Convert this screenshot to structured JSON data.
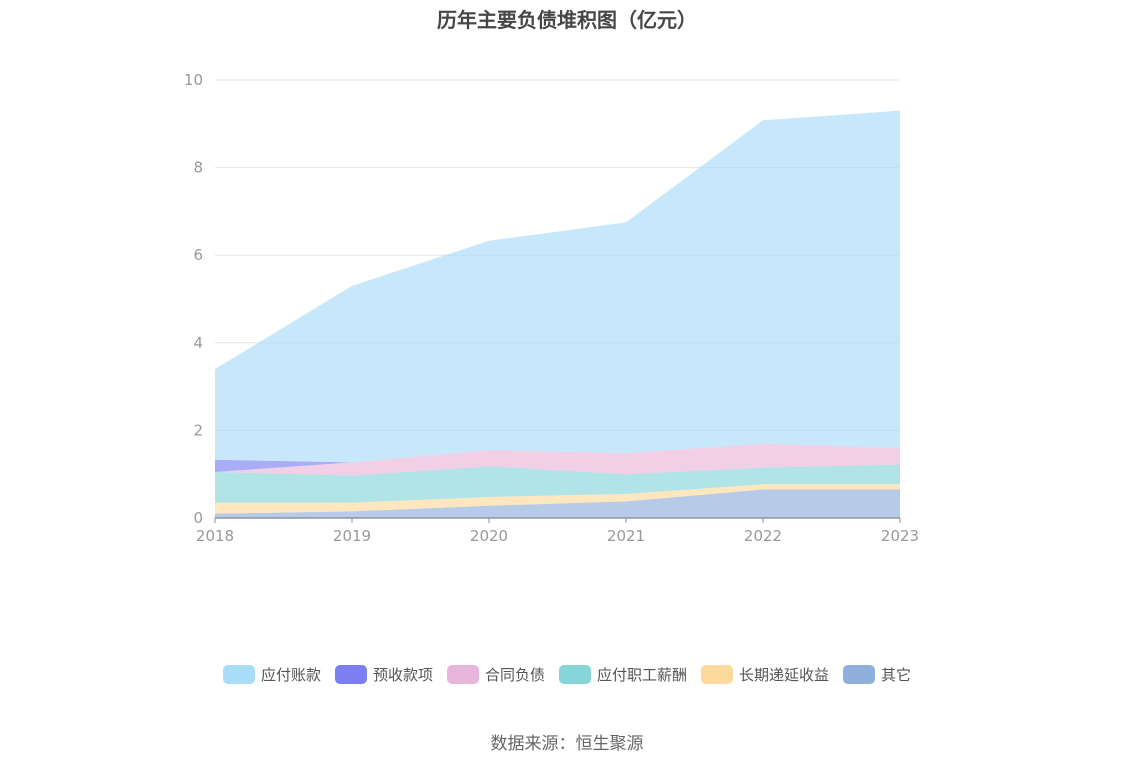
{
  "chart_data": {
    "type": "area",
    "stacked": true,
    "title": "历年主要负债堆积图（亿元）",
    "categories": [
      "2018",
      "2019",
      "2020",
      "2021",
      "2022",
      "2023"
    ],
    "ylim": [
      0,
      10
    ],
    "yticks": [
      "0",
      "2",
      "4",
      "6",
      "8",
      "10"
    ],
    "grid": true,
    "legend_position": "bottom",
    "series": [
      {
        "name": "其它",
        "color": "#8fafdc",
        "values": [
          0.1,
          0.15,
          0.28,
          0.38,
          0.65,
          0.65
        ]
      },
      {
        "name": "长期递延收益",
        "color": "#fdd99b",
        "values": [
          0.25,
          0.2,
          0.2,
          0.17,
          0.12,
          0.12
        ]
      },
      {
        "name": "应付职工薪酬",
        "color": "#86d6d9",
        "values": [
          0.7,
          0.62,
          0.7,
          0.45,
          0.38,
          0.45
        ]
      },
      {
        "name": "合同负债",
        "color": "#e8b6da",
        "values": [
          0.0,
          0.3,
          0.37,
          0.48,
          0.55,
          0.38
        ]
      },
      {
        "name": "预收款项",
        "color": "#7b7ff2",
        "values": [
          0.28,
          0.0,
          0.0,
          0.0,
          0.0,
          0.0
        ]
      },
      {
        "name": "应付账款",
        "color": "#a8dcf7",
        "values": [
          2.07,
          4.03,
          4.78,
          5.27,
          7.38,
          7.7
        ]
      }
    ],
    "legend_order": [
      "应付账款",
      "预收款项",
      "合同负债",
      "应付职工薪酬",
      "长期递延收益",
      "其它"
    ]
  },
  "source_text": "数据来源：恒生聚源"
}
